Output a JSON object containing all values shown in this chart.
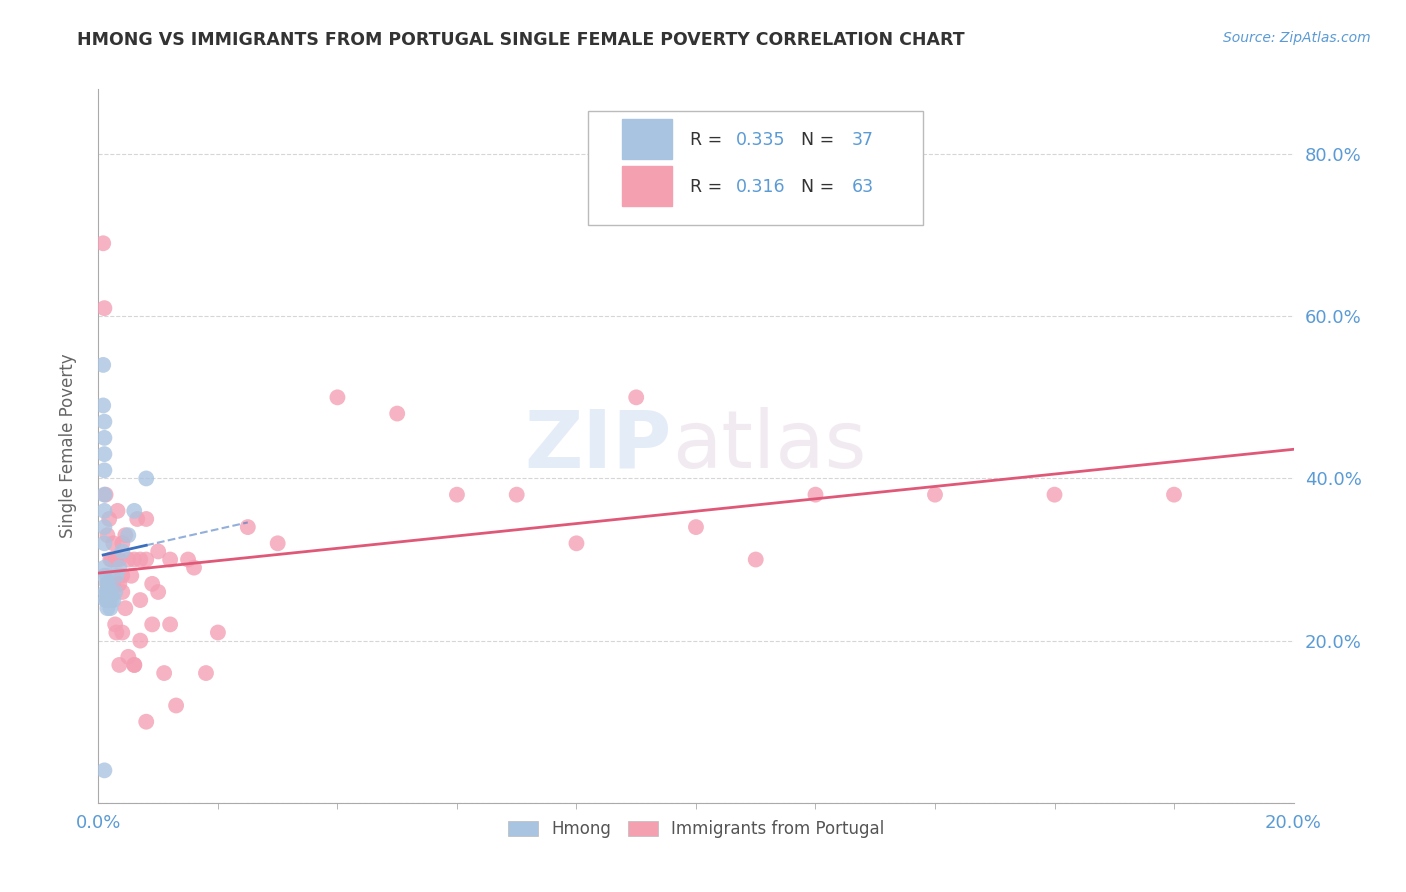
{
  "title": "HMONG VS IMMIGRANTS FROM PORTUGAL SINGLE FEMALE POVERTY CORRELATION CHART",
  "source": "Source: ZipAtlas.com",
  "ylabel": "Single Female Poverty",
  "watermark_zip": "ZIP",
  "watermark_atlas": "atlas",
  "xlim": [
    0.0,
    0.2
  ],
  "ylim": [
    0.0,
    0.88
  ],
  "xtick_positions": [
    0.0,
    0.2
  ],
  "xtick_labels": [
    "0.0%",
    "20.0%"
  ],
  "ytick_values": [
    0.0,
    0.2,
    0.4,
    0.6,
    0.8
  ],
  "right_ytick_labels": [
    "80.0%",
    "60.0%",
    "40.0%",
    "20.0%"
  ],
  "right_ytick_values": [
    0.8,
    0.6,
    0.4,
    0.2
  ],
  "background_color": "#ffffff",
  "grid_color": "#cccccc",
  "axis_label_color": "#5b9bd5",
  "title_color": "#333333",
  "hmong_scatter_color": "#aac4e0",
  "portugal_scatter_color": "#f4a0b4",
  "hmong_line_color": "#3a6fbe",
  "portugal_line_color": "#e05878",
  "hmong_x": [
    0.0008,
    0.0008,
    0.001,
    0.001,
    0.001,
    0.001,
    0.001,
    0.001,
    0.001,
    0.001,
    0.001,
    0.001,
    0.001,
    0.0012,
    0.0012,
    0.0015,
    0.0015,
    0.0015,
    0.0015,
    0.0015,
    0.0015,
    0.0015,
    0.0015,
    0.0015,
    0.0018,
    0.0018,
    0.002,
    0.002,
    0.0022,
    0.0025,
    0.0028,
    0.003,
    0.0035,
    0.004,
    0.005,
    0.006,
    0.008
  ],
  "hmong_y": [
    0.54,
    0.49,
    0.47,
    0.45,
    0.43,
    0.41,
    0.38,
    0.36,
    0.34,
    0.32,
    0.29,
    0.28,
    0.04,
    0.26,
    0.25,
    0.28,
    0.27,
    0.27,
    0.26,
    0.26,
    0.25,
    0.25,
    0.25,
    0.24,
    0.26,
    0.25,
    0.26,
    0.24,
    0.25,
    0.25,
    0.26,
    0.28,
    0.29,
    0.31,
    0.33,
    0.36,
    0.4
  ],
  "portugal_x": [
    0.0008,
    0.001,
    0.0012,
    0.0015,
    0.0015,
    0.0018,
    0.002,
    0.0022,
    0.0025,
    0.0025,
    0.0028,
    0.0028,
    0.003,
    0.003,
    0.0032,
    0.0035,
    0.0035,
    0.004,
    0.004,
    0.004,
    0.0045,
    0.0045,
    0.005,
    0.0055,
    0.006,
    0.006,
    0.0065,
    0.007,
    0.007,
    0.008,
    0.008,
    0.009,
    0.01,
    0.011,
    0.012,
    0.013,
    0.015,
    0.016,
    0.018,
    0.02,
    0.025,
    0.03,
    0.04,
    0.05,
    0.06,
    0.07,
    0.08,
    0.09,
    0.1,
    0.11,
    0.12,
    0.14,
    0.16,
    0.18,
    0.0035,
    0.004,
    0.005,
    0.006,
    0.007,
    0.008,
    0.009,
    0.01,
    0.012
  ],
  "portugal_y": [
    0.69,
    0.61,
    0.38,
    0.33,
    0.27,
    0.35,
    0.3,
    0.3,
    0.32,
    0.27,
    0.3,
    0.22,
    0.3,
    0.21,
    0.36,
    0.3,
    0.27,
    0.32,
    0.28,
    0.26,
    0.33,
    0.24,
    0.3,
    0.28,
    0.3,
    0.17,
    0.35,
    0.3,
    0.2,
    0.35,
    0.3,
    0.27,
    0.31,
    0.16,
    0.3,
    0.12,
    0.3,
    0.29,
    0.16,
    0.21,
    0.34,
    0.32,
    0.5,
    0.48,
    0.38,
    0.38,
    0.32,
    0.5,
    0.34,
    0.3,
    0.38,
    0.38,
    0.38,
    0.38,
    0.17,
    0.21,
    0.18,
    0.17,
    0.25,
    0.1,
    0.22,
    0.26,
    0.22
  ],
  "r_hmong_label": "R = ",
  "r_hmong_val": "0.335",
  "n_hmong_label": "  N = ",
  "n_hmong_val": "37",
  "r_portugal_label": "R = ",
  "r_portugal_val": "0.316",
  "n_portugal_label": "  N = ",
  "n_portugal_val": "63",
  "legend_label_hmong": "Hmong",
  "legend_label_portugal": "Immigrants from Portugal"
}
